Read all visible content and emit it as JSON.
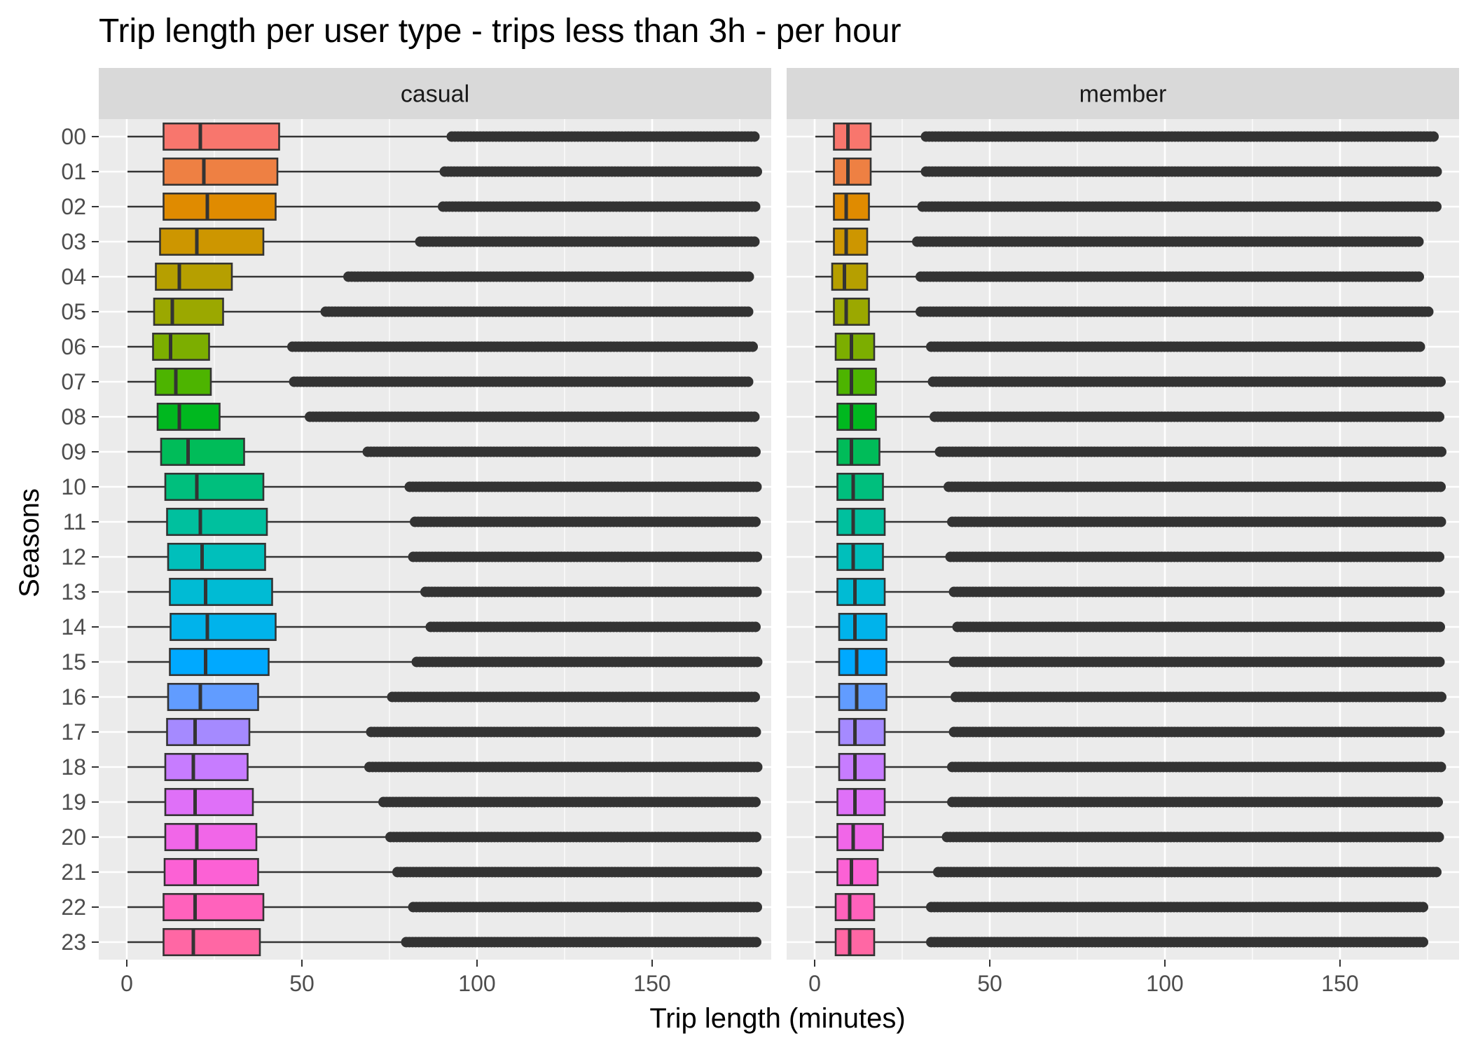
{
  "chart_data": {
    "type": "boxplot",
    "title": "Trip length per user type - trips less than 3h - per hour",
    "xlabel": "Trip length (minutes)",
    "ylabel": "Seasons",
    "xlim": [
      -8,
      184
    ],
    "xticks": [
      0,
      50,
      100,
      150
    ],
    "grid": true,
    "legend": "none",
    "categories": [
      "00",
      "01",
      "02",
      "03",
      "04",
      "05",
      "06",
      "07",
      "08",
      "09",
      "10",
      "11",
      "12",
      "13",
      "14",
      "15",
      "16",
      "17",
      "18",
      "19",
      "20",
      "21",
      "22",
      "23"
    ],
    "colors": [
      "#F8766D",
      "#EE8043",
      "#E08B00",
      "#CD9600",
      "#B69F00",
      "#9BA800",
      "#7CAE00",
      "#4DB400",
      "#00B81F",
      "#00BC59",
      "#00BF7D",
      "#00C09E",
      "#00BFBB",
      "#00BBD4",
      "#00B3EB",
      "#00A9FF",
      "#619CFF",
      "#A58AFF",
      "#C77CFF",
      "#DF70F8",
      "#F166E8",
      "#FC61D5",
      "#FF62BC",
      "#FF67A4"
    ],
    "panels": [
      {
        "label": "casual",
        "series": [
          {
            "hour": "00",
            "min": 0.2,
            "q1": 10.5,
            "median": 21,
            "q3": 43.5,
            "whisker_high": 92,
            "out_max": 180
          },
          {
            "hour": "01",
            "min": 0.2,
            "q1": 10.5,
            "median": 22,
            "q3": 43,
            "whisker_high": 90,
            "out_max": 180
          },
          {
            "hour": "02",
            "min": 0.2,
            "q1": 10.5,
            "median": 23,
            "q3": 42.5,
            "whisker_high": 89.5,
            "out_max": 180
          },
          {
            "hour": "03",
            "min": 0.2,
            "q1": 9.5,
            "median": 20,
            "q3": 39,
            "whisker_high": 83,
            "out_max": 180
          },
          {
            "hour": "04",
            "min": 0.2,
            "q1": 8.3,
            "median": 15,
            "q3": 30,
            "whisker_high": 62.5,
            "out_max": 178
          },
          {
            "hour": "05",
            "min": 0.2,
            "q1": 7.8,
            "median": 13,
            "q3": 27.5,
            "whisker_high": 56,
            "out_max": 178
          },
          {
            "hour": "06",
            "min": 0.2,
            "q1": 7.5,
            "median": 12.5,
            "q3": 23.5,
            "whisker_high": 46.5,
            "out_max": 179
          },
          {
            "hour": "07",
            "min": 0.2,
            "q1": 8.2,
            "median": 14,
            "q3": 24,
            "whisker_high": 47,
            "out_max": 178
          },
          {
            "hour": "08",
            "min": 0.2,
            "q1": 8.8,
            "median": 15,
            "q3": 26.5,
            "whisker_high": 51.5,
            "out_max": 180
          },
          {
            "hour": "09",
            "min": 0.2,
            "q1": 9.8,
            "median": 17.5,
            "q3": 33.5,
            "whisker_high": 68,
            "out_max": 180
          },
          {
            "hour": "10",
            "min": 0.2,
            "q1": 11,
            "median": 20,
            "q3": 39,
            "whisker_high": 80,
            "out_max": 180
          },
          {
            "hour": "11",
            "min": 0.2,
            "q1": 11.5,
            "median": 21,
            "q3": 40,
            "whisker_high": 81.5,
            "out_max": 180
          },
          {
            "hour": "12",
            "min": 0.2,
            "q1": 11.8,
            "median": 21.5,
            "q3": 39.5,
            "whisker_high": 81,
            "out_max": 180
          },
          {
            "hour": "13",
            "min": 0.2,
            "q1": 12.3,
            "median": 22.5,
            "q3": 41.5,
            "whisker_high": 84.5,
            "out_max": 180
          },
          {
            "hour": "14",
            "min": 0.2,
            "q1": 12.5,
            "median": 23,
            "q3": 42.5,
            "whisker_high": 86,
            "out_max": 180
          },
          {
            "hour": "15",
            "min": 0.2,
            "q1": 12.3,
            "median": 22.5,
            "q3": 40.5,
            "whisker_high": 82,
            "out_max": 180
          },
          {
            "hour": "16",
            "min": 0.2,
            "q1": 11.8,
            "median": 21,
            "q3": 37.5,
            "whisker_high": 75,
            "out_max": 180
          },
          {
            "hour": "17",
            "min": 0.2,
            "q1": 11.5,
            "median": 19.5,
            "q3": 35,
            "whisker_high": 69,
            "out_max": 180
          },
          {
            "hour": "18",
            "min": 0.2,
            "q1": 11,
            "median": 19,
            "q3": 34.5,
            "whisker_high": 68.5,
            "out_max": 180
          },
          {
            "hour": "19",
            "min": 0.2,
            "q1": 11,
            "median": 19.5,
            "q3": 36,
            "whisker_high": 72.5,
            "out_max": 180
          },
          {
            "hour": "20",
            "min": 0.2,
            "q1": 11,
            "median": 20,
            "q3": 37,
            "whisker_high": 74.5,
            "out_max": 180
          },
          {
            "hour": "21",
            "min": 0.2,
            "q1": 10.8,
            "median": 19.5,
            "q3": 37.5,
            "whisker_high": 76.5,
            "out_max": 180
          },
          {
            "hour": "22",
            "min": 0.2,
            "q1": 10.5,
            "median": 19.5,
            "q3": 39,
            "whisker_high": 81,
            "out_max": 180
          },
          {
            "hour": "23",
            "min": 0.2,
            "q1": 10.5,
            "median": 19,
            "q3": 38,
            "whisker_high": 79,
            "out_max": 180
          }
        ]
      },
      {
        "label": "member",
        "series": [
          {
            "hour": "00",
            "min": 0.2,
            "q1": 5.5,
            "median": 9.5,
            "q3": 16,
            "whisker_high": 31,
            "out_max": 177
          },
          {
            "hour": "01",
            "min": 0.2,
            "q1": 5.5,
            "median": 9.5,
            "q3": 16,
            "whisker_high": 31,
            "out_max": 178
          },
          {
            "hour": "02",
            "min": 0.2,
            "q1": 5.5,
            "median": 9,
            "q3": 15.5,
            "whisker_high": 30,
            "out_max": 178
          },
          {
            "hour": "03",
            "min": 0.2,
            "q1": 5.5,
            "median": 9,
            "q3": 15,
            "whisker_high": 28.5,
            "out_max": 173
          },
          {
            "hour": "04",
            "min": 0.2,
            "q1": 5,
            "median": 8.5,
            "q3": 15,
            "whisker_high": 29.5,
            "out_max": 173
          },
          {
            "hour": "05",
            "min": 0.2,
            "q1": 5.5,
            "median": 9,
            "q3": 15.5,
            "whisker_high": 29.5,
            "out_max": 176
          },
          {
            "hour": "06",
            "min": 0.2,
            "q1": 6,
            "median": 10.5,
            "q3": 17,
            "whisker_high": 32.5,
            "out_max": 173
          },
          {
            "hour": "07",
            "min": 0.2,
            "q1": 6.5,
            "median": 10.5,
            "q3": 17.5,
            "whisker_high": 33,
            "out_max": 179
          },
          {
            "hour": "08",
            "min": 0.2,
            "q1": 6.5,
            "median": 10.5,
            "q3": 17.5,
            "whisker_high": 33.5,
            "out_max": 179
          },
          {
            "hour": "09",
            "min": 0.2,
            "q1": 6.5,
            "median": 10.5,
            "q3": 18.5,
            "whisker_high": 35,
            "out_max": 179
          },
          {
            "hour": "10",
            "min": 0.2,
            "q1": 6.5,
            "median": 11,
            "q3": 19.5,
            "whisker_high": 37.5,
            "out_max": 179
          },
          {
            "hour": "11",
            "min": 0.2,
            "q1": 6.5,
            "median": 11,
            "q3": 20,
            "whisker_high": 38.5,
            "out_max": 179
          },
          {
            "hour": "12",
            "min": 0.2,
            "q1": 6.5,
            "median": 11,
            "q3": 19.5,
            "whisker_high": 38,
            "out_max": 179
          },
          {
            "hour": "13",
            "min": 0.2,
            "q1": 6.5,
            "median": 11.5,
            "q3": 20,
            "whisker_high": 39,
            "out_max": 179
          },
          {
            "hour": "14",
            "min": 0.2,
            "q1": 7,
            "median": 11.5,
            "q3": 20.5,
            "whisker_high": 40,
            "out_max": 179
          },
          {
            "hour": "15",
            "min": 0.2,
            "q1": 7,
            "median": 12,
            "q3": 20.5,
            "whisker_high": 39,
            "out_max": 179
          },
          {
            "hour": "16",
            "min": 0.2,
            "q1": 7,
            "median": 12,
            "q3": 20.5,
            "whisker_high": 39.5,
            "out_max": 179
          },
          {
            "hour": "17",
            "min": 0.2,
            "q1": 7,
            "median": 11.5,
            "q3": 20,
            "whisker_high": 39,
            "out_max": 179
          },
          {
            "hour": "18",
            "min": 0.2,
            "q1": 7,
            "median": 11.5,
            "q3": 20,
            "whisker_high": 38.5,
            "out_max": 179
          },
          {
            "hour": "19",
            "min": 0.2,
            "q1": 6.5,
            "median": 11.5,
            "q3": 20,
            "whisker_high": 38.5,
            "out_max": 178
          },
          {
            "hour": "20",
            "min": 0.2,
            "q1": 6.5,
            "median": 11,
            "q3": 19.5,
            "whisker_high": 37,
            "out_max": 179
          },
          {
            "hour": "21",
            "min": 0.2,
            "q1": 6.5,
            "median": 10.5,
            "q3": 18,
            "whisker_high": 34.5,
            "out_max": 178
          },
          {
            "hour": "22",
            "min": 0.2,
            "q1": 6,
            "median": 10,
            "q3": 17,
            "whisker_high": 32.5,
            "out_max": 174
          },
          {
            "hour": "23",
            "min": 0.2,
            "q1": 6,
            "median": 10,
            "q3": 17,
            "whisker_high": 32.5,
            "out_max": 174
          }
        ]
      }
    ]
  }
}
